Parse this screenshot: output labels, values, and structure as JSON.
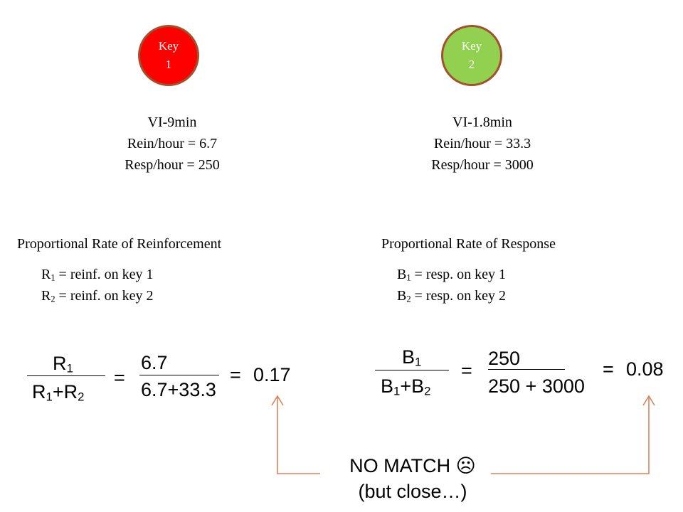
{
  "key1": {
    "line1": "Key",
    "line2": "1",
    "color": "#ff0000"
  },
  "key2": {
    "line1": "Key",
    "line2": "2",
    "color": "#92d050"
  },
  "left_schedule": {
    "name": "VI-9min",
    "rein": "Rein/hour = 6.7",
    "resp": "Resp/hour = 250"
  },
  "right_schedule": {
    "name": "VI-1.8min",
    "rein": "Rein/hour = 33.3",
    "resp": "Resp/hour = 3000"
  },
  "left_heading": "Proportional Rate of Reinforcement",
  "right_heading": "Proportional Rate of Response",
  "left_defs": [
    {
      "var": "R",
      "sub": "1",
      "text": " = reinf. on key 1"
    },
    {
      "var": "R",
      "sub": "2",
      "text": " = reinf. on key 2"
    }
  ],
  "right_defs": [
    {
      "var": "B",
      "sub": "1",
      "text": " = resp. on key 1"
    },
    {
      "var": "B",
      "sub": "2",
      "text": " = resp. on key 2"
    }
  ],
  "left_formula": {
    "num_var": "R",
    "num_sub": "1",
    "den_var1": "R",
    "den_sub1": "1",
    "den_plus": "+",
    "den_var2": "R",
    "den_sub2": "2",
    "eq": "=",
    "value_num": "6.7",
    "value_den": "6.7+33.3",
    "eq2": "=",
    "result": "0.17"
  },
  "right_formula": {
    "num_var": "B",
    "num_sub": "1",
    "den_var1": "B",
    "den_sub1": "1",
    "den_plus": "+",
    "den_var2": "B",
    "den_sub2": "2",
    "eq": "=",
    "value_num": "250",
    "value_den": "250 + 3000",
    "eq2": "=",
    "result": "0.08"
  },
  "conclusion": {
    "line1": "NO MATCH ☹",
    "line2": "(but close…)"
  },
  "arrow_color": "#d9825b"
}
